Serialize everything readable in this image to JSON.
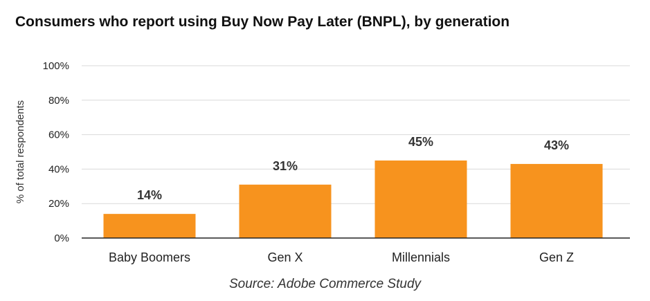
{
  "colors": {
    "bar": "#F7931E",
    "gridline": "#D9D9D9",
    "axis": "#222222"
  },
  "chart_data": {
    "type": "bar",
    "title": "Consumers who report using Buy Now Pay Later (BNPL), by generation",
    "ylabel": "% of total respondents",
    "xlabel": "",
    "categories": [
      "Baby Boomers",
      "Gen X",
      "Millennials",
      "Gen Z"
    ],
    "values": [
      14,
      31,
      45,
      43
    ],
    "data_labels": [
      "14%",
      "31%",
      "45%",
      "43%"
    ],
    "ylim": [
      0,
      100
    ],
    "yticks": [
      0,
      20,
      40,
      60,
      80,
      100
    ],
    "ytick_labels": [
      "0%",
      "20%",
      "40%",
      "60%",
      "80%",
      "100%"
    ],
    "grid": true,
    "legend": "none",
    "source": "Source: Adobe Commerce Study"
  }
}
